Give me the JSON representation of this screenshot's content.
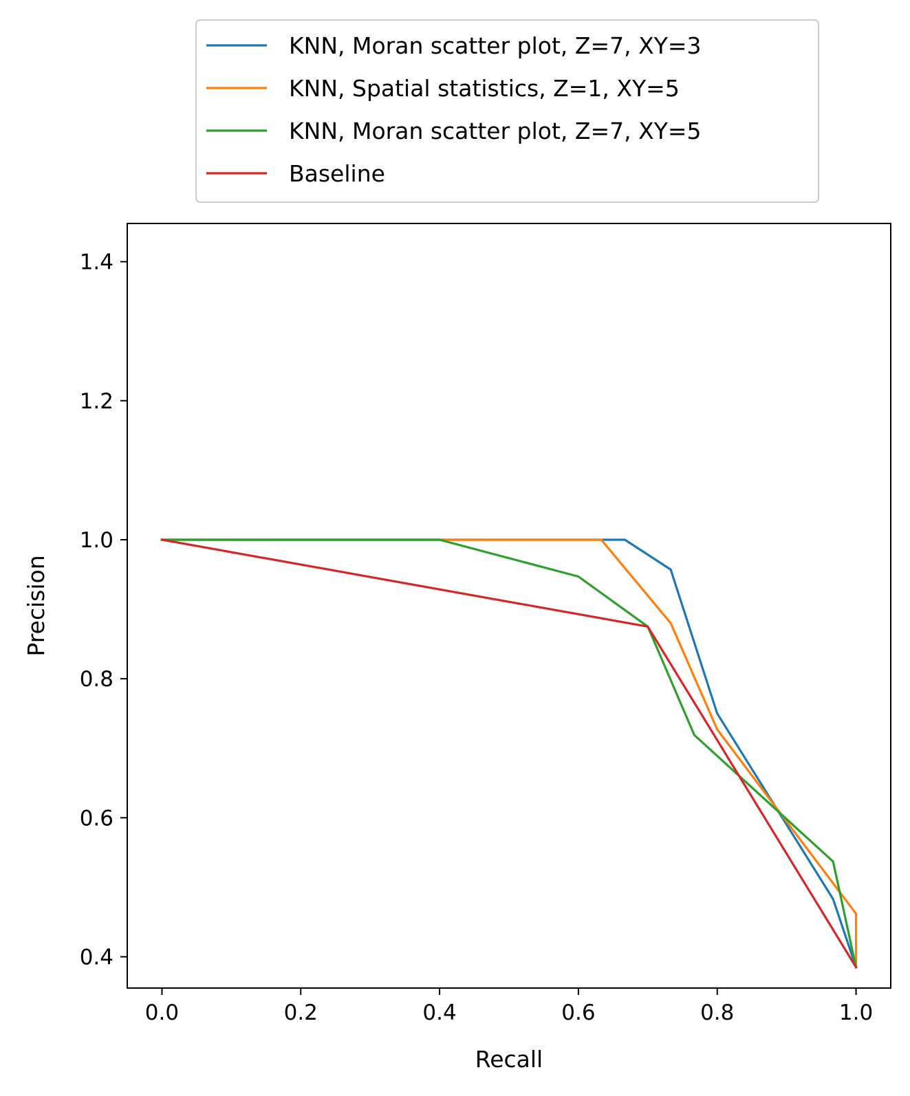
{
  "chart_data": {
    "type": "line",
    "title": "",
    "xlabel": "Recall",
    "ylabel": "Precision",
    "xlim": [
      -0.05,
      1.05
    ],
    "ylim": [
      0.355,
      1.455
    ],
    "xticks": [
      0.0,
      0.2,
      0.4,
      0.6,
      0.8,
      1.0
    ],
    "xtick_labels": [
      "0.0",
      "0.2",
      "0.4",
      "0.6",
      "0.8",
      "1.0"
    ],
    "yticks": [
      0.4,
      0.6,
      0.8,
      1.0,
      1.2,
      1.4
    ],
    "ytick_labels": [
      "0.4",
      "0.6",
      "0.8",
      "1.0",
      "1.2",
      "1.4"
    ],
    "grid": false,
    "legend_position": "above plot",
    "series": [
      {
        "name": "KNN, Moran scatter plot, Z=7, XY=3",
        "color": "#1f77b4",
        "x": [
          0.0,
          0.667,
          0.733,
          0.8,
          0.967,
          1.0
        ],
        "y": [
          1.0,
          1.0,
          0.957,
          0.75,
          0.483,
          0.385
        ]
      },
      {
        "name": "KNN, Spatial statistics, Z=1, XY=5",
        "color": "#ff7f0e",
        "x": [
          0.0,
          0.633,
          0.733,
          0.8,
          1.0,
          1.0,
          1.0
        ],
        "y": [
          1.0,
          1.0,
          0.88,
          0.727,
          0.462,
          0.462,
          0.385
        ]
      },
      {
        "name": "KNN, Moran scatter plot, Z=7, XY=5",
        "color": "#2ca02c",
        "x": [
          0.0,
          0.4,
          0.6,
          0.7,
          0.767,
          0.967,
          1.0
        ],
        "y": [
          1.0,
          1.0,
          0.947,
          0.875,
          0.719,
          0.537,
          0.385
        ]
      },
      {
        "name": "Baseline",
        "color": "#d62728",
        "x": [
          0.0,
          0.7,
          1.0
        ],
        "y": [
          1.0,
          0.875,
          0.385
        ]
      }
    ]
  }
}
